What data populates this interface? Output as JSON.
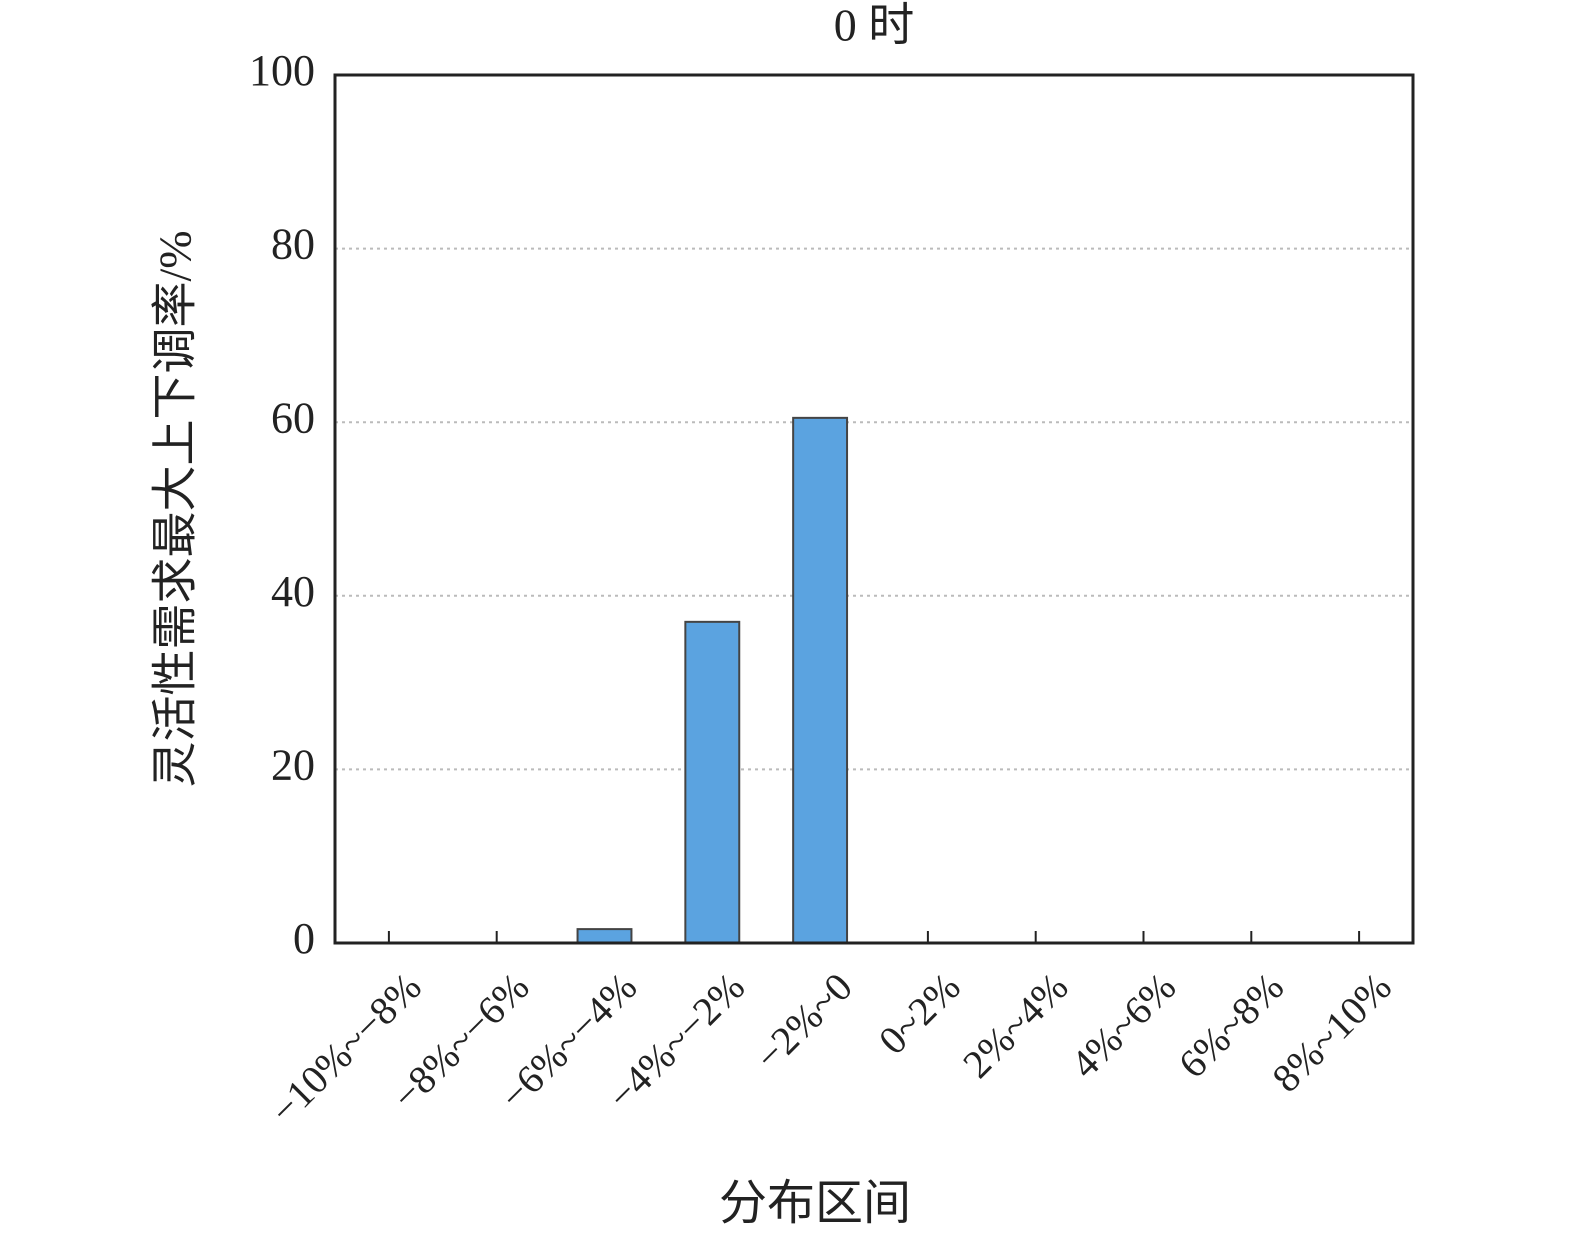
{
  "chart_data": {
    "type": "bar",
    "title": "0 时",
    "x_label": "分布区间",
    "y_label": "灵活性需求最大上下调率/%",
    "categories": [
      "−10%~−8%",
      "−8%~−6%",
      "−6%~−4%",
      "−4%~−2%",
      "−2%~0",
      "0~2%",
      "2%~4%",
      "4%~6%",
      "6%~8%",
      "8%~10%"
    ],
    "values": [
      0,
      0,
      1.6,
      37,
      60.5,
      0,
      0,
      0,
      0,
      0
    ],
    "color": "#5ba3e0",
    "ylim": [
      0,
      100
    ],
    "yticks": [
      0,
      20,
      40,
      60,
      80,
      100
    ],
    "grid": true
  }
}
